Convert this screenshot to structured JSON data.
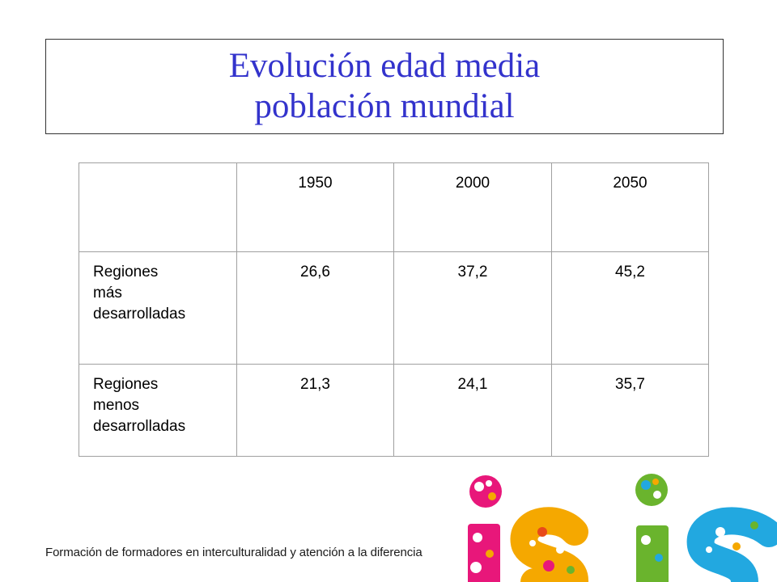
{
  "title": {
    "line1": "Evolución edad media",
    "line2": "población mundial",
    "color": "#3333cc"
  },
  "table": {
    "headers": [
      "",
      "1950",
      "2000",
      "2050"
    ],
    "rows": [
      {
        "label": [
          "Regiones",
          "más",
          "desarrolladas"
        ],
        "values": [
          "26,6",
          "37,2",
          "45,2"
        ]
      },
      {
        "label": [
          "Regiones",
          "menos",
          "desarrolladas"
        ],
        "values": [
          "21,3",
          "24,1",
          "35,7"
        ]
      }
    ]
  },
  "footer": {
    "text": "Formación de formadores en interculturalidad y atención a la diferencia"
  },
  "logo": {
    "colors": [
      "#e8177a",
      "#f5a800",
      "#6ab42d",
      "#22a8e0",
      "#e84a1a"
    ]
  }
}
